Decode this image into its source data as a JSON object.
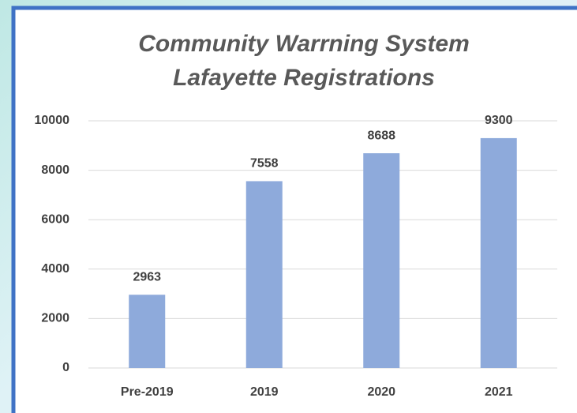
{
  "chart_data": {
    "type": "bar",
    "title": [
      "Community Warrning System",
      "Lafayette Registrations"
    ],
    "categories": [
      "Pre-2019",
      "2019",
      "2020",
      "2021"
    ],
    "values": [
      2963,
      7558,
      8688,
      9300
    ],
    "color": "#8eaadb",
    "ylim": [
      0,
      10000
    ],
    "yticks": [
      0,
      2000,
      4000,
      6000,
      8000,
      10000
    ],
    "grid": true
  }
}
